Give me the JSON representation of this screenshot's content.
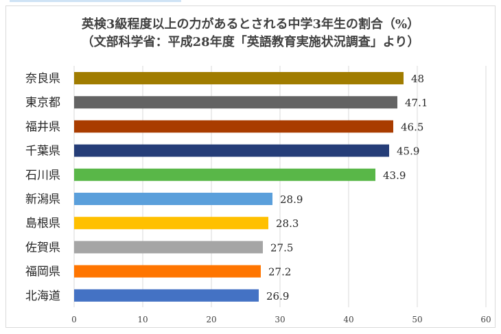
{
  "chart_data": {
    "type": "bar",
    "orientation": "horizontal",
    "title": "英検3級程度以上の力があるとされる中学3年生の割合（%）",
    "subtitle": "（文部科学省：平成28年度「英語教育実施状況調査」より）",
    "categories": [
      "奈良県",
      "東京都",
      "福井県",
      "千葉県",
      "石川県",
      "新潟県",
      "島根県",
      "佐賀県",
      "福岡県",
      "北海道"
    ],
    "values": [
      48,
      47.1,
      46.5,
      45.9,
      43.9,
      28.9,
      28.3,
      27.5,
      27.2,
      26.9
    ],
    "value_labels": [
      "48",
      "47.1",
      "46.5",
      "45.9",
      "43.9",
      "28.9",
      "28.3",
      "27.5",
      "27.2",
      "26.9"
    ],
    "colors": [
      "#a07c00",
      "#636363",
      "#a93c00",
      "#253d78",
      "#59b748",
      "#5a9fdb",
      "#ffc000",
      "#a5a5a5",
      "#ff7500",
      "#4472c4"
    ],
    "xlim": [
      0,
      60
    ],
    "xticks": [
      0,
      10,
      20,
      30,
      40,
      50,
      60
    ],
    "xlabel": "",
    "ylabel": "",
    "grid": true,
    "legend": "none"
  }
}
